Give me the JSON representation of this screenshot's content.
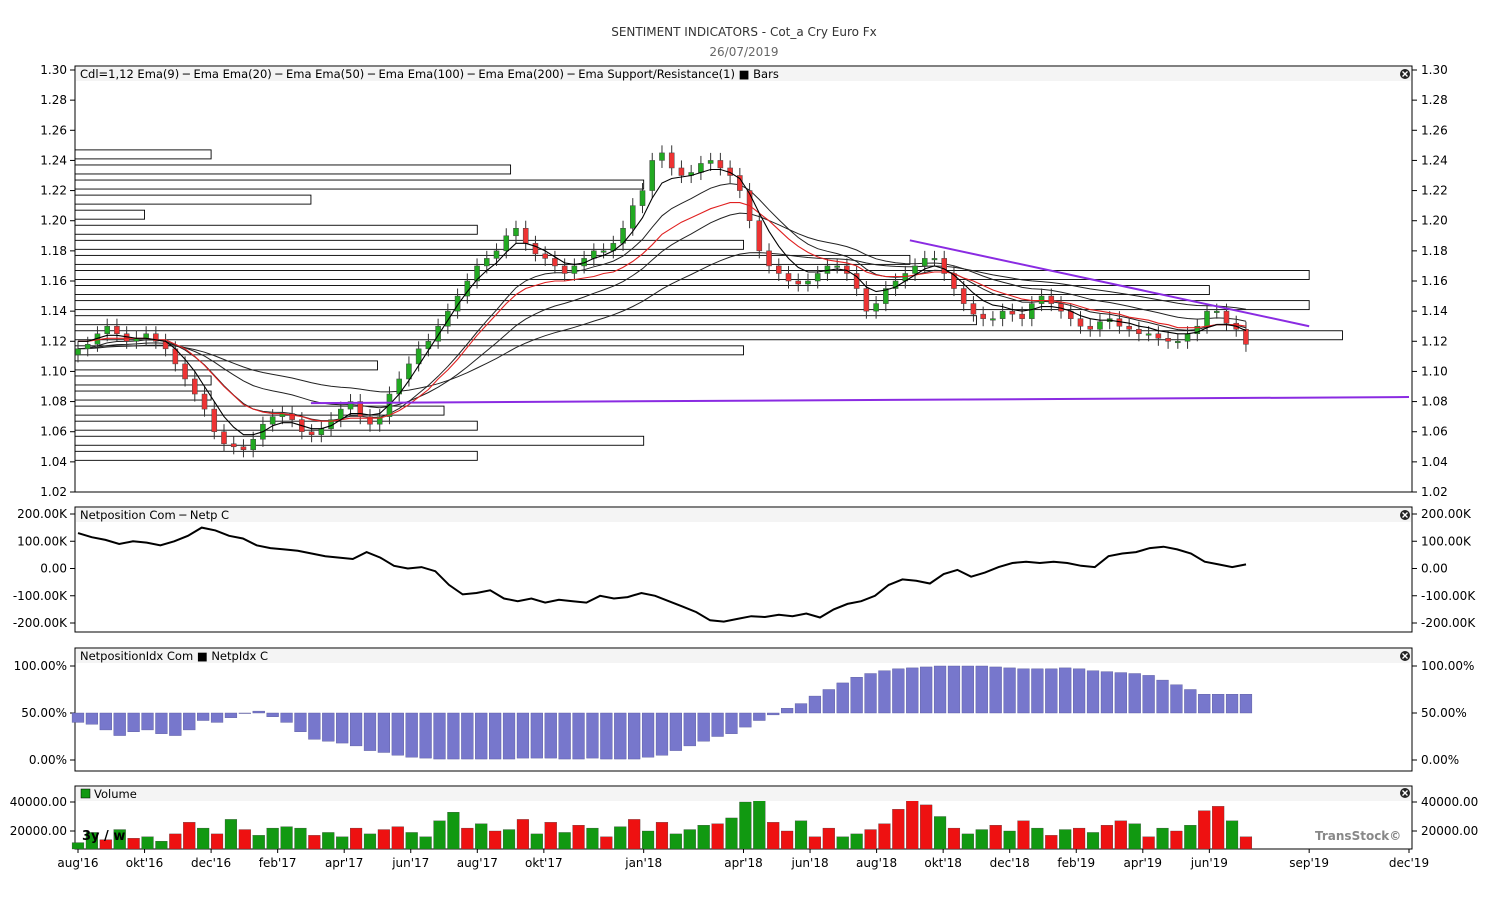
{
  "header": {
    "title": "SENTIMENT INDICATORS - Cot_a  Cry Euro Fx",
    "date": "26/07/2019"
  },
  "colors": {
    "candle_up": "#22aa22",
    "candle_down": "#ee3333",
    "ema9": "#000000",
    "ema20": "#e02020",
    "trendline": "#8a2be2",
    "netidx_bar": "#7777cc",
    "volume_up": "#119911",
    "volume_down": "#ee1111"
  },
  "panels": {
    "price": {
      "legend": "Cdl=1,12  Ema(9) ─ Ema  Ema(20) ─ Ema  Ema(50) ─ Ema  Ema(100) ─ Ema  Ema(200) ─ Ema  Support/Resistance(1) ■ Bars"
    },
    "netposition": {
      "legend": "Netposition Com ─ Netp C"
    },
    "netidx": {
      "legend": "NetpositionIdx Com ■ NetpIdx C"
    },
    "volume": {
      "legend": "Volume",
      "period_label": "3y / w",
      "watermark": "TransStock©"
    }
  },
  "x_labels": [
    "aug'16",
    "okt'16",
    "dec'16",
    "feb'17",
    "apr'17",
    "jun'17",
    "aug'17",
    "okt'17",
    "jan'18",
    "apr'18",
    "jun'18",
    "aug'18",
    "okt'18",
    "dec'18",
    "feb'19",
    "apr'19",
    "jun'19",
    "sep'19",
    "dec'19"
  ],
  "chart_data": [
    {
      "type": "line",
      "name": "price",
      "x_start": "2016-08",
      "x_end": "2019-12",
      "ylim": [
        1.02,
        1.3
      ],
      "y_ticks": [
        "1.30",
        "1.28",
        "1.26",
        "1.24",
        "1.22",
        "1.20",
        "1.18",
        "1.16",
        "1.14",
        "1.12",
        "1.10",
        "1.08",
        "1.06",
        "1.04",
        "1.02"
      ],
      "close": [
        1.115,
        1.118,
        1.125,
        1.13,
        1.125,
        1.12,
        1.122,
        1.125,
        1.12,
        1.115,
        1.105,
        1.095,
        1.085,
        1.075,
        1.06,
        1.052,
        1.05,
        1.048,
        1.055,
        1.065,
        1.07,
        1.072,
        1.068,
        1.06,
        1.058,
        1.062,
        1.068,
        1.075,
        1.08,
        1.07,
        1.065,
        1.07,
        1.085,
        1.095,
        1.105,
        1.115,
        1.12,
        1.13,
        1.14,
        1.15,
        1.16,
        1.17,
        1.175,
        1.18,
        1.19,
        1.195,
        1.185,
        1.178,
        1.175,
        1.17,
        1.165,
        1.17,
        1.175,
        1.18,
        1.18,
        1.185,
        1.195,
        1.21,
        1.22,
        1.24,
        1.245,
        1.235,
        1.23,
        1.232,
        1.238,
        1.24,
        1.235,
        1.23,
        1.22,
        1.2,
        1.18,
        1.17,
        1.165,
        1.16,
        1.158,
        1.16,
        1.165,
        1.17,
        1.17,
        1.165,
        1.155,
        1.14,
        1.145,
        1.155,
        1.16,
        1.165,
        1.17,
        1.175,
        1.175,
        1.165,
        1.155,
        1.145,
        1.138,
        1.135,
        1.135,
        1.14,
        1.138,
        1.135,
        1.145,
        1.15,
        1.145,
        1.14,
        1.135,
        1.13,
        1.128,
        1.133,
        1.135,
        1.13,
        1.128,
        1.125,
        1.125,
        1.122,
        1.12,
        1.12,
        1.125,
        1.13,
        1.14,
        1.14,
        1.132,
        1.128,
        1.118
      ],
      "ema9": [
        1.12,
        1.12,
        1.122,
        1.124,
        1.124,
        1.123,
        1.122,
        1.122,
        1.121,
        1.12,
        1.115,
        1.108,
        1.1,
        1.09,
        1.08,
        1.07,
        1.063,
        1.058,
        1.058,
        1.06,
        1.064,
        1.066,
        1.066,
        1.064,
        1.062,
        1.062,
        1.064,
        1.068,
        1.072,
        1.072,
        1.071,
        1.072,
        1.078,
        1.085,
        1.094,
        1.104,
        1.114,
        1.124,
        1.134,
        1.144,
        1.153,
        1.161,
        1.167,
        1.172,
        1.179,
        1.185,
        1.185,
        1.183,
        1.18,
        1.176,
        1.172,
        1.171,
        1.172,
        1.175,
        1.177,
        1.18,
        1.185,
        1.193,
        1.202,
        1.215,
        1.225,
        1.228,
        1.229,
        1.23,
        1.232,
        1.234,
        1.234,
        1.232,
        1.228,
        1.218,
        1.205,
        1.193,
        1.183,
        1.175,
        1.169,
        1.166,
        1.166,
        1.167,
        1.168,
        1.167,
        1.163,
        1.156,
        1.153,
        1.154,
        1.156,
        1.16,
        1.164,
        1.168,
        1.17,
        1.168,
        1.164,
        1.158,
        1.152,
        1.147,
        1.144,
        1.143,
        1.141,
        1.14,
        1.141,
        1.143,
        1.143,
        1.142,
        1.14,
        1.137,
        1.135,
        1.134,
        1.134,
        1.133,
        1.132,
        1.13,
        1.129,
        1.127,
        1.126,
        1.125,
        1.125,
        1.126,
        1.129,
        1.131,
        1.131,
        1.13,
        1.127
      ],
      "ema20": [
        1.12,
        1.12,
        1.121,
        1.122,
        1.122,
        1.122,
        1.122,
        1.122,
        1.121,
        1.121,
        1.118,
        1.115,
        1.11,
        1.104,
        1.097,
        1.09,
        1.084,
        1.078,
        1.075,
        1.073,
        1.072,
        1.072,
        1.071,
        1.07,
        1.068,
        1.067,
        1.067,
        1.068,
        1.069,
        1.069,
        1.069,
        1.069,
        1.071,
        1.074,
        1.078,
        1.083,
        1.088,
        1.095,
        1.101,
        1.108,
        1.116,
        1.124,
        1.131,
        1.138,
        1.145,
        1.151,
        1.155,
        1.157,
        1.159,
        1.16,
        1.16,
        1.161,
        1.162,
        1.163,
        1.165,
        1.166,
        1.169,
        1.173,
        1.178,
        1.184,
        1.191,
        1.195,
        1.199,
        1.202,
        1.205,
        1.208,
        1.21,
        1.212,
        1.212,
        1.21,
        1.205,
        1.2,
        1.194,
        1.188,
        1.183,
        1.179,
        1.176,
        1.174,
        1.173,
        1.172,
        1.17,
        1.166,
        1.164,
        1.163,
        1.163,
        1.163,
        1.164,
        1.165,
        1.166,
        1.166,
        1.165,
        1.162,
        1.16,
        1.157,
        1.154,
        1.152,
        1.15,
        1.148,
        1.147,
        1.147,
        1.147,
        1.146,
        1.145,
        1.143,
        1.141,
        1.14,
        1.139,
        1.138,
        1.136,
        1.135,
        1.134,
        1.132,
        1.131,
        1.129,
        1.129,
        1.129,
        1.13,
        1.131,
        1.131,
        1.131,
        1.13
      ],
      "resistance_levels": [
        1.244,
        1.234,
        1.224,
        1.214,
        1.204,
        1.194,
        1.184,
        1.174,
        1.164,
        1.154,
        1.144,
        1.134,
        1.124,
        1.114,
        1.104,
        1.094,
        1.084,
        1.074,
        1.064,
        1.054,
        1.044
      ],
      "resistance_x_end": [
        "2016-12",
        "2017-09",
        "2018-01",
        "2017-03",
        "2016-10",
        "2017-08",
        "2018-04",
        "2018-09",
        "2019-09",
        "2019-06",
        "2019-09",
        "2018-11",
        "2019-10",
        "2018-04",
        "2017-05",
        "2016-12",
        "2016-12",
        "2017-07",
        "2017-08",
        "2018-01",
        "2017-08"
      ],
      "trendlines": [
        {
          "from": [
            "2018-09",
            1.187
          ],
          "to": [
            "2019-09",
            1.13
          ]
        },
        {
          "from": [
            "2017-03",
            1.079
          ],
          "to": [
            "2019-12",
            1.083
          ]
        }
      ]
    },
    {
      "type": "line",
      "name": "netposition",
      "ylim": [
        -200000,
        200000
      ],
      "y_ticks": [
        "200.00K",
        "100.00K",
        "0.00",
        "-100.00K",
        "-200.00K"
      ],
      "values": [
        130000,
        115000,
        105000,
        90000,
        100000,
        95000,
        85000,
        100000,
        120000,
        150000,
        140000,
        120000,
        110000,
        85000,
        75000,
        70000,
        65000,
        55000,
        45000,
        40000,
        35000,
        60000,
        40000,
        10000,
        0,
        5000,
        -10000,
        -60000,
        -95000,
        -90000,
        -80000,
        -110000,
        -120000,
        -110000,
        -125000,
        -115000,
        -120000,
        -125000,
        -100000,
        -110000,
        -105000,
        -90000,
        -100000,
        -120000,
        -140000,
        -160000,
        -190000,
        -195000,
        -185000,
        -175000,
        -178000,
        -170000,
        -175000,
        -165000,
        -180000,
        -150000,
        -130000,
        -120000,
        -100000,
        -60000,
        -40000,
        -45000,
        -55000,
        -20000,
        -5000,
        -30000,
        -15000,
        5000,
        20000,
        25000,
        20000,
        25000,
        20000,
        10000,
        5000,
        45000,
        55000,
        60000,
        75000,
        80000,
        70000,
        55000,
        25000,
        15000,
        5000,
        15000
      ],
      "x_end": "2019-07"
    },
    {
      "type": "bar",
      "name": "netidx",
      "ylim": [
        0,
        100
      ],
      "y_ticks": [
        "100.00%",
        "50.00%",
        "0.00%"
      ],
      "values": [
        40,
        38,
        32,
        26,
        30,
        32,
        28,
        26,
        32,
        42,
        40,
        45,
        50,
        52,
        46,
        40,
        30,
        22,
        20,
        18,
        15,
        10,
        8,
        5,
        3,
        2,
        1,
        1,
        1,
        1,
        1,
        1,
        2,
        2,
        2,
        1,
        1,
        2,
        1,
        1,
        1,
        3,
        5,
        10,
        15,
        20,
        25,
        28,
        35,
        42,
        48,
        55,
        60,
        68,
        75,
        82,
        88,
        92,
        95,
        97,
        98,
        99,
        100,
        100,
        100,
        100,
        99,
        98,
        97,
        97,
        97,
        98,
        97,
        95,
        94,
        93,
        92,
        90,
        85,
        80,
        75,
        70,
        70,
        70,
        70
      ],
      "x_end": "2019-07"
    },
    {
      "type": "bar",
      "name": "volume",
      "y_ticks": [
        "40000.00",
        "20000.00"
      ],
      "ylim": [
        10000,
        45000
      ],
      "values": [
        12000,
        19000,
        14000,
        21000,
        15000,
        16000,
        13000,
        18000,
        26000,
        22000,
        18000,
        28000,
        21000,
        17000,
        22000,
        23000,
        22000,
        17000,
        19000,
        16000,
        22000,
        18000,
        21000,
        23000,
        19000,
        16000,
        27000,
        33000,
        22000,
        25000,
        20000,
        21000,
        28000,
        18000,
        26000,
        19000,
        24000,
        22000,
        16000,
        23000,
        28000,
        20000,
        26000,
        18000,
        21000,
        24000,
        25000,
        29000,
        40000,
        42000,
        26000,
        20000,
        27000,
        16000,
        22000,
        16000,
        18000,
        21000,
        25000,
        35000,
        44000,
        38000,
        30000,
        22000,
        18000,
        21000,
        24000,
        20000,
        27000,
        22000,
        17000,
        21000,
        22000,
        19000,
        24000,
        27000,
        25000,
        16000,
        22000,
        20000,
        24000,
        34000,
        37000,
        27000,
        16000
      ],
      "up": [
        true,
        true,
        false,
        true,
        false,
        true,
        true,
        false,
        false,
        true,
        false,
        true,
        false,
        true,
        true,
        true,
        true,
        false,
        true,
        true,
        false,
        true,
        false,
        false,
        true,
        true,
        true,
        true,
        false,
        true,
        false,
        true,
        false,
        true,
        false,
        true,
        false,
        true,
        false,
        true,
        false,
        true,
        false,
        true,
        true,
        true,
        false,
        true,
        true,
        true,
        false,
        false,
        true,
        false,
        false,
        true,
        true,
        false,
        false,
        false,
        false,
        false,
        true,
        false,
        true,
        true,
        false,
        true,
        false,
        true,
        false,
        true,
        false,
        true,
        false,
        false,
        true,
        false,
        true,
        false,
        true,
        false,
        false,
        true,
        false
      ],
      "x_end": "2019-07"
    }
  ]
}
